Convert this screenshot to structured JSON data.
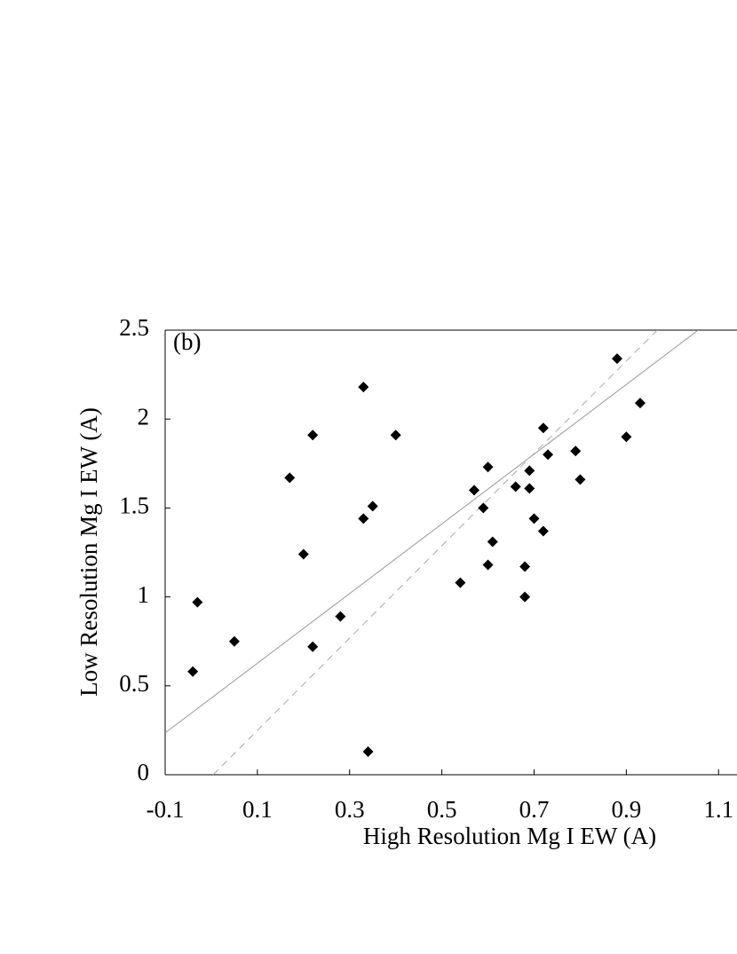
{
  "chart_data": {
    "type": "scatter",
    "panel_label": "(b)",
    "x_label": "High Resolution Mg I EW (A)",
    "y_label": "Low Resolution Mg I EW (A)",
    "xlim": [
      -0.1,
      1.14
    ],
    "ylim": [
      0,
      2.5
    ],
    "xticks": [
      -0.1,
      0.1,
      0.3,
      0.5,
      0.7,
      0.9,
      1.1
    ],
    "yticks": [
      0,
      0.5,
      1,
      1.5,
      2,
      2.5
    ],
    "series": [
      {
        "color": "#000000",
        "x": [
          -0.04,
          -0.03,
          0.05,
          0.17,
          0.2,
          0.22,
          0.22,
          0.28,
          0.33,
          0.33,
          0.35,
          0.34,
          0.4,
          0.54,
          0.57,
          0.59,
          0.6,
          0.6,
          0.61,
          0.66,
          0.68,
          0.68,
          0.69,
          0.69,
          0.7,
          0.72,
          0.72,
          0.73,
          0.79,
          0.8,
          0.88,
          0.9,
          0.93
        ],
        "values": [
          0.58,
          0.97,
          0.75,
          1.67,
          1.24,
          1.91,
          0.72,
          0.89,
          2.18,
          1.44,
          1.51,
          0.13,
          1.91,
          1.08,
          1.6,
          1.5,
          1.73,
          1.18,
          1.31,
          1.62,
          1.17,
          1.0,
          1.71,
          1.61,
          1.44,
          1.37,
          1.95,
          1.8,
          1.82,
          1.66,
          2.34,
          1.9,
          2.09
        ]
      }
    ],
    "lines": [
      {
        "color": "#999999",
        "style": "solid",
        "x": [
          -0.1,
          1.056
        ],
        "values": [
          0.235,
          2.5
        ]
      },
      {
        "color": "#aaaaaa",
        "style": "dashed",
        "x": [
          0.004,
          0.967
        ],
        "values": [
          0,
          2.5
        ]
      }
    ]
  }
}
